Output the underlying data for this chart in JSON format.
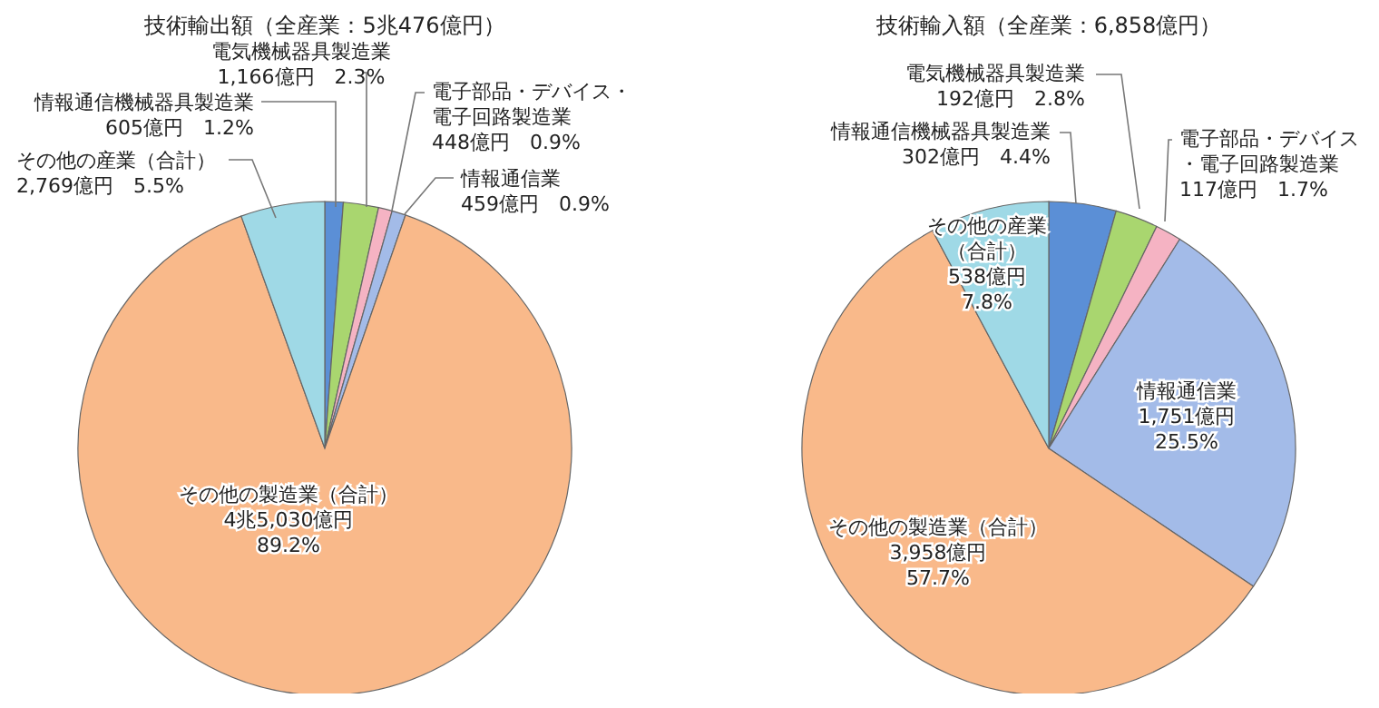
{
  "chart_data": [
    {
      "type": "pie",
      "title": "技術輸出額（全産業：5兆476億円）",
      "categories": [
        "情報通信機械器具製造業",
        "電気機械器具製造業",
        "電子部品・デバイス・電子回路製造業",
        "情報通信業",
        "その他の製造業（合計）",
        "その他の産業（合計）"
      ],
      "values": [
        1.2,
        2.3,
        0.9,
        0.9,
        89.2,
        5.5
      ],
      "colors": [
        "#5b8fd6",
        "#a9d66f",
        "#f5b3c3",
        "#a3bbe8",
        "#f9b98a",
        "#9fd9e6"
      ],
      "value_labels": [
        "605億円　1.2%",
        "1,166億円　2.3%",
        "448億円　0.9%",
        "459億円　0.9%",
        "4兆5,030億円\n89.2%",
        "2,769億円　5.5%"
      ]
    },
    {
      "type": "pie",
      "title": "技術輸入額（全産業：6,858億円）",
      "categories": [
        "情報通信機械器具製造業",
        "電気機械器具製造業",
        "電子部品・デバイス・電子回路製造業",
        "情報通信業",
        "その他の製造業（合計）",
        "その他の産業（合計）"
      ],
      "values": [
        4.4,
        2.8,
        1.7,
        25.5,
        57.7,
        7.8
      ],
      "colors": [
        "#5b8fd6",
        "#a9d66f",
        "#f5b3c3",
        "#a3bbe8",
        "#f9b98a",
        "#9fd9e6"
      ],
      "value_labels": [
        "302億円　4.4%",
        "192億円　2.8%",
        "117億円　1.7%",
        "1,751億円\n25.5%",
        "3,958億円\n57.7%",
        "538億円\n7.8%"
      ]
    }
  ]
}
